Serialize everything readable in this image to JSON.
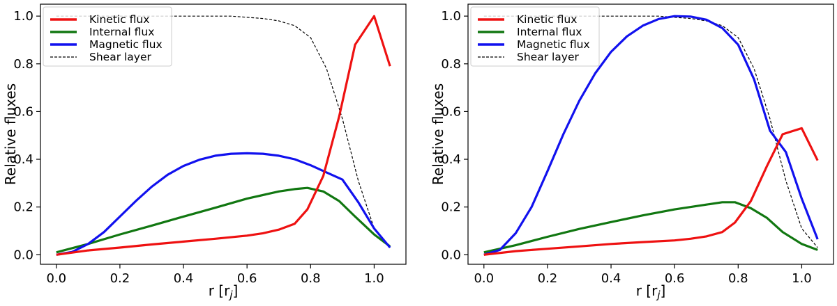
{
  "chart_data": [
    {
      "type": "line",
      "title": "",
      "xlabel": "r [r_j]",
      "ylabel": "Relative fluxes",
      "xlim": [
        -0.05,
        1.1
      ],
      "ylim": [
        -0.04,
        1.05
      ],
      "xticks": [
        "0.0",
        "0.2",
        "0.4",
        "0.6",
        "0.8",
        "1.0"
      ],
      "xtick_values": [
        0,
        0.2,
        0.4,
        0.6,
        0.8,
        1.0
      ],
      "yticks": [
        "0.0",
        "0.2",
        "0.4",
        "0.6",
        "0.8",
        "1.0"
      ],
      "ytick_values": [
        0,
        0.2,
        0.4,
        0.6,
        0.8,
        1.0
      ],
      "legend_position": "top-left",
      "series": [
        {
          "name": "Kinetic flux",
          "color": "#ee1111",
          "style": "solid",
          "x": [
            0,
            0.1,
            0.2,
            0.3,
            0.4,
            0.5,
            0.6,
            0.65,
            0.7,
            0.75,
            0.79,
            0.84,
            0.89,
            0.94,
            1.0,
            1.05
          ],
          "y": [
            0.0,
            0.018,
            0.03,
            0.043,
            0.055,
            0.067,
            0.08,
            0.09,
            0.105,
            0.13,
            0.19,
            0.33,
            0.58,
            0.88,
            1.0,
            0.79
          ]
        },
        {
          "name": "Internal flux",
          "color": "#117711",
          "style": "solid",
          "x": [
            0,
            0.1,
            0.2,
            0.3,
            0.4,
            0.5,
            0.6,
            0.7,
            0.75,
            0.79,
            0.84,
            0.89,
            0.94,
            1.0,
            1.05
          ],
          "y": [
            0.01,
            0.045,
            0.085,
            0.122,
            0.16,
            0.197,
            0.235,
            0.265,
            0.275,
            0.28,
            0.265,
            0.225,
            0.16,
            0.085,
            0.035
          ]
        },
        {
          "name": "Magnetic flux",
          "color": "#1111ee",
          "style": "solid",
          "x": [
            0,
            0.05,
            0.1,
            0.15,
            0.2,
            0.25,
            0.3,
            0.35,
            0.4,
            0.45,
            0.5,
            0.55,
            0.6,
            0.65,
            0.7,
            0.75,
            0.8,
            0.85,
            0.9,
            0.95,
            1.0,
            1.05
          ],
          "y": [
            0.0,
            0.012,
            0.045,
            0.095,
            0.16,
            0.225,
            0.285,
            0.335,
            0.372,
            0.398,
            0.415,
            0.423,
            0.425,
            0.423,
            0.415,
            0.4,
            0.375,
            0.345,
            0.315,
            0.22,
            0.11,
            0.03
          ]
        },
        {
          "name": "Shear layer",
          "color": "#000000",
          "style": "dashed",
          "x": [
            0,
            0.1,
            0.2,
            0.3,
            0.4,
            0.5,
            0.55,
            0.6,
            0.65,
            0.7,
            0.75,
            0.8,
            0.85,
            0.9,
            0.95,
            1.0,
            1.05
          ],
          "y": [
            1.0,
            1.0,
            1.0,
            1.0,
            1.0,
            1.0,
            1.0,
            0.995,
            0.99,
            0.98,
            0.96,
            0.91,
            0.78,
            0.57,
            0.31,
            0.11,
            0.03
          ]
        }
      ]
    },
    {
      "type": "line",
      "title": "",
      "xlabel": "r [r_j]",
      "ylabel": "Relative fluxes",
      "xlim": [
        -0.05,
        1.1
      ],
      "ylim": [
        -0.04,
        1.05
      ],
      "xticks": [
        "0.0",
        "0.2",
        "0.4",
        "0.6",
        "0.8",
        "1.0"
      ],
      "xtick_values": [
        0,
        0.2,
        0.4,
        0.6,
        0.8,
        1.0
      ],
      "yticks": [
        "0.0",
        "0.2",
        "0.4",
        "0.6",
        "0.8",
        "1.0"
      ],
      "ytick_values": [
        0,
        0.2,
        0.4,
        0.6,
        0.8,
        1.0
      ],
      "legend_position": "top-left",
      "series": [
        {
          "name": "Kinetic flux",
          "color": "#ee1111",
          "style": "solid",
          "x": [
            0,
            0.1,
            0.2,
            0.3,
            0.4,
            0.5,
            0.6,
            0.65,
            0.7,
            0.75,
            0.79,
            0.84,
            0.89,
            0.94,
            1.0,
            1.05
          ],
          "y": [
            0.0,
            0.015,
            0.025,
            0.035,
            0.045,
            0.053,
            0.06,
            0.067,
            0.077,
            0.095,
            0.135,
            0.225,
            0.37,
            0.505,
            0.53,
            0.395
          ]
        },
        {
          "name": "Internal flux",
          "color": "#117711",
          "style": "solid",
          "x": [
            0,
            0.1,
            0.2,
            0.3,
            0.4,
            0.5,
            0.6,
            0.7,
            0.75,
            0.79,
            0.84,
            0.89,
            0.94,
            1.0,
            1.05
          ],
          "y": [
            0.01,
            0.04,
            0.075,
            0.108,
            0.137,
            0.165,
            0.19,
            0.21,
            0.22,
            0.22,
            0.195,
            0.155,
            0.095,
            0.045,
            0.02
          ]
        },
        {
          "name": "Magnetic flux",
          "color": "#1111ee",
          "style": "solid",
          "x": [
            0,
            0.05,
            0.1,
            0.15,
            0.2,
            0.25,
            0.3,
            0.35,
            0.4,
            0.45,
            0.5,
            0.55,
            0.6,
            0.65,
            0.7,
            0.75,
            0.8,
            0.85,
            0.9,
            0.95,
            1.0,
            1.05
          ],
          "y": [
            0.0,
            0.02,
            0.09,
            0.2,
            0.35,
            0.505,
            0.645,
            0.76,
            0.85,
            0.915,
            0.96,
            0.988,
            1.0,
            0.998,
            0.985,
            0.95,
            0.88,
            0.735,
            0.52,
            0.43,
            0.235,
            0.065
          ]
        },
        {
          "name": "Shear layer",
          "color": "#000000",
          "style": "dashed",
          "x": [
            0,
            0.1,
            0.2,
            0.3,
            0.4,
            0.5,
            0.55,
            0.6,
            0.65,
            0.7,
            0.75,
            0.8,
            0.85,
            0.9,
            0.95,
            1.0,
            1.05
          ],
          "y": [
            1.0,
            1.0,
            1.0,
            1.0,
            1.0,
            1.0,
            1.0,
            0.995,
            0.99,
            0.98,
            0.96,
            0.91,
            0.78,
            0.57,
            0.31,
            0.11,
            0.03
          ]
        }
      ]
    }
  ]
}
